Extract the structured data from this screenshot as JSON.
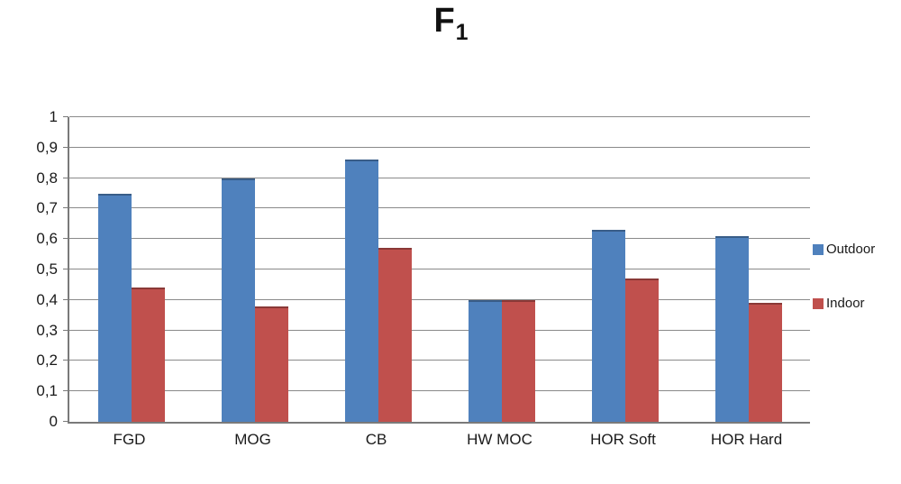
{
  "title": {
    "main": "F",
    "subscript": "1"
  },
  "chart_data": {
    "type": "bar",
    "title": "F1",
    "categories": [
      "FGD",
      "MOG",
      "CB",
      "HW MOC",
      "HOR Soft",
      "HOR Hard"
    ],
    "series": [
      {
        "name": "Outdoor",
        "color": "#4F81BD",
        "values": [
          0.75,
          0.8,
          0.86,
          0.4,
          0.63,
          0.61
        ]
      },
      {
        "name": "Indoor",
        "color": "#C0504D",
        "values": [
          0.44,
          0.38,
          0.57,
          0.4,
          0.47,
          0.39
        ]
      }
    ],
    "xlabel": "",
    "ylabel": "",
    "ylim": [
      0,
      1
    ],
    "ytick_step": 0.1,
    "ytick_labels": [
      "0",
      "0,1",
      "0,2",
      "0,3",
      "0,4",
      "0,5",
      "0,6",
      "0,7",
      "0,8",
      "0,9",
      "1"
    ],
    "grid": true,
    "legend_position": "right"
  },
  "colors": {
    "outdoor": "#4F81BD",
    "indoor": "#C0504D",
    "gridline": "#8a8a8a",
    "axis": "#7a7a7a",
    "text": "#1a1a1a"
  }
}
